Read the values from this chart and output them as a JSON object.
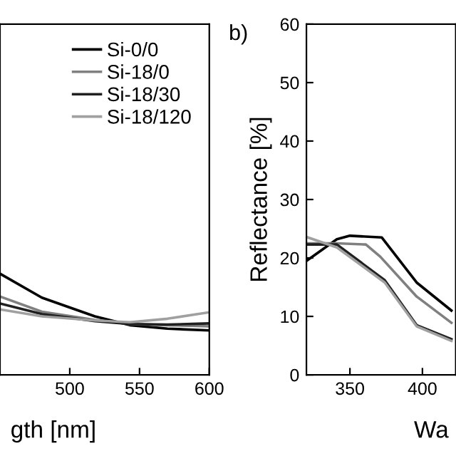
{
  "chart_data": [
    {
      "type": "line",
      "xlabel": "gth [nm]",
      "xlim": [
        450,
        600
      ],
      "xticks": [
        500,
        550,
        600
      ],
      "ylim": [
        0,
        60
      ],
      "tick_labels": "x",
      "legend": "top right",
      "grid": false,
      "series": [
        {
          "name": "Si-0/0",
          "color": "#000000",
          "x": [
            450,
            480,
            518,
            543,
            570,
            600
          ],
          "values": [
            17.3,
            13.2,
            10.0,
            8.5,
            7.9,
            7.6
          ]
        },
        {
          "name": "Si-18/0",
          "color": "#808080",
          "x": [
            450,
            480,
            518,
            543,
            570,
            600
          ],
          "values": [
            13.4,
            10.8,
            9.4,
            8.7,
            8.5,
            8.3
          ]
        },
        {
          "name": "Si-18/30",
          "color": "#202020",
          "x": [
            450,
            480,
            518,
            543,
            570,
            600
          ],
          "values": [
            12.2,
            10.4,
            9.2,
            8.7,
            8.6,
            8.8
          ]
        },
        {
          "name": "Si-18/120",
          "color": "#a0a0a0",
          "x": [
            450,
            480,
            518,
            543,
            570,
            600
          ],
          "values": [
            11.2,
            10.0,
            9.3,
            9.0,
            9.6,
            10.7
          ]
        }
      ]
    },
    {
      "type": "line",
      "xlabel": "Wa",
      "ylabel": "Reflectance [%]",
      "annotations": [
        "b)"
      ],
      "xlim": [
        320,
        423
      ],
      "xticks": [
        350,
        400
      ],
      "ylim": [
        0,
        60
      ],
      "yticks": [
        0,
        10,
        20,
        30,
        40,
        50,
        60
      ],
      "grid": false,
      "series": [
        {
          "color": "#000000",
          "x": [
            320,
            341,
            350,
            372,
            396,
            420
          ],
          "values": [
            19.5,
            23.2,
            23.8,
            23.5,
            15.8,
            11.0
          ]
        },
        {
          "color": "#808080",
          "x": [
            320,
            341,
            361,
            371,
            396,
            420
          ],
          "values": [
            22.5,
            22.5,
            22.3,
            20.2,
            13.4,
            8.9
          ]
        },
        {
          "color": "#202020",
          "x": [
            320,
            341,
            374,
            396,
            420
          ],
          "values": [
            22.3,
            22.3,
            16.2,
            8.5,
            6.1
          ]
        },
        {
          "color": "#a0a0a0",
          "x": [
            320,
            341,
            374,
            396,
            420
          ],
          "values": [
            23.6,
            21.8,
            15.8,
            8.3,
            5.8
          ]
        }
      ]
    }
  ]
}
